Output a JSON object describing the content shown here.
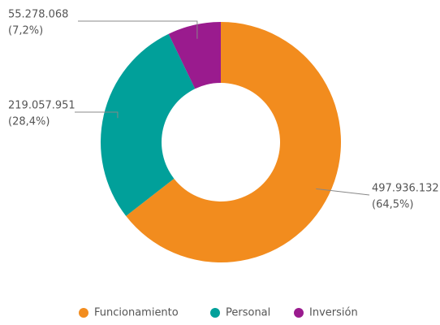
{
  "chart_data": {
    "type": "donut",
    "categories": [
      "Funcionamiento",
      "Personal",
      "Inversión"
    ],
    "values": [
      497936132,
      219057951,
      55278068
    ],
    "value_labels": [
      "497.936.132",
      "219.057.951",
      "55.278.068"
    ],
    "percentages": [
      64.5,
      28.4,
      7.2
    ],
    "percentage_labels": [
      "(64,5%)",
      "(28,4%)",
      "(7,2%)"
    ],
    "colors": [
      "#f28c1e",
      "#01a09a",
      "#9a1b8e"
    ],
    "legend": "bottom"
  }
}
